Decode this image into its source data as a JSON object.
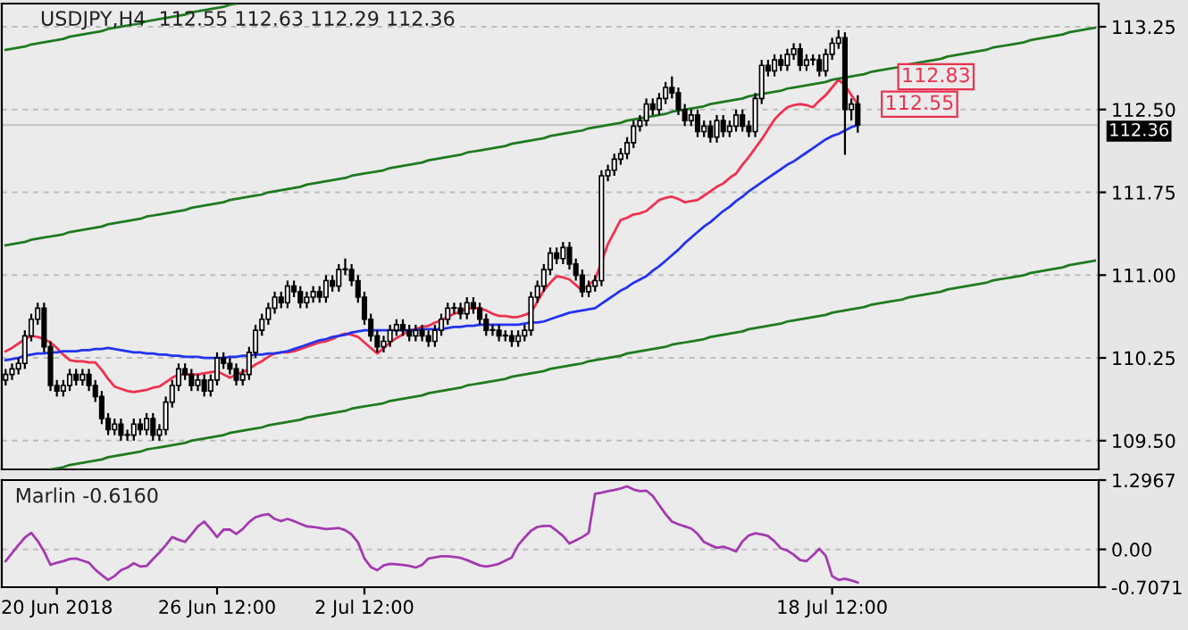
{
  "chart_data": [
    {
      "type": "candlestick",
      "title": "USDJPY,H4  112.55 112.63 112.29 112.36",
      "categories": [
        null,
        null,
        null,
        null,
        null,
        null,
        null,
        null,
        null,
        null,
        null,
        null,
        null,
        null,
        null,
        null,
        null,
        null,
        null,
        null,
        null,
        null,
        null,
        null,
        null,
        null,
        null,
        null,
        null,
        null,
        null,
        null,
        null,
        null,
        null,
        null,
        null,
        null,
        null,
        null,
        null,
        null,
        null,
        null,
        null,
        null,
        null,
        null,
        null,
        null,
        null,
        null,
        null,
        null,
        null,
        null,
        null,
        null,
        null,
        null,
        null,
        null,
        null,
        null,
        null,
        null,
        null,
        null,
        null,
        null,
        null,
        null,
        null,
        null,
        null,
        null,
        null,
        null,
        null,
        null,
        null,
        null,
        null,
        null,
        null,
        null,
        null,
        null,
        null,
        null,
        null,
        null,
        null,
        null,
        null,
        null,
        null,
        null,
        null,
        null,
        null,
        null,
        null,
        null,
        null,
        null,
        null,
        null,
        null,
        null,
        null,
        null,
        null,
        null,
        null,
        null,
        null,
        null,
        null,
        null,
        null,
        null,
        null,
        null,
        null,
        null,
        null,
        null,
        null,
        null,
        null,
        null,
        null,
        null,
        null,
        null,
        null,
        null,
        null,
        null,
        null,
        null,
        null,
        null,
        null,
        null,
        null,
        null,
        null,
        null,
        null,
        null,
        null,
        null,
        null,
        null,
        null,
        null,
        null,
        null,
        null,
        null,
        null,
        null,
        null,
        null,
        null,
        null,
        null,
        null,
        null
      ],
      "ohlc": [
        [
          110.05,
          110.15,
          110.0,
          110.1
        ],
        [
          110.1,
          110.2,
          110.05,
          110.15
        ],
        [
          110.15,
          110.25,
          110.1,
          110.2
        ],
        [
          110.2,
          110.5,
          110.15,
          110.45
        ],
        [
          110.45,
          110.65,
          110.4,
          110.6
        ],
        [
          110.6,
          110.75,
          110.55,
          110.7
        ],
        [
          110.7,
          110.75,
          110.3,
          110.35
        ],
        [
          110.35,
          110.4,
          109.95,
          110.0
        ],
        [
          110.0,
          110.05,
          109.9,
          109.95
        ],
        [
          109.95,
          110.05,
          109.9,
          110.0
        ],
        [
          110.0,
          110.15,
          109.95,
          110.1
        ],
        [
          110.1,
          110.15,
          110.0,
          110.05
        ],
        [
          110.05,
          110.15,
          110.0,
          110.1
        ],
        [
          110.1,
          110.15,
          109.95,
          110.0
        ],
        [
          110.0,
          110.05,
          109.85,
          109.9
        ],
        [
          109.9,
          109.95,
          109.65,
          109.7
        ],
        [
          109.7,
          109.75,
          109.55,
          109.6
        ],
        [
          109.6,
          109.7,
          109.55,
          109.65
        ],
        [
          109.65,
          109.7,
          109.5,
          109.55
        ],
        [
          109.55,
          109.6,
          109.5,
          109.55
        ],
        [
          109.55,
          109.7,
          109.5,
          109.65
        ],
        [
          109.65,
          109.7,
          109.55,
          109.6
        ],
        [
          109.6,
          109.75,
          109.55,
          109.7
        ],
        [
          109.7,
          109.75,
          109.5,
          109.55
        ],
        [
          109.55,
          109.65,
          109.5,
          109.6
        ],
        [
          109.6,
          109.9,
          109.55,
          109.85
        ],
        [
          109.85,
          110.05,
          109.8,
          110.0
        ],
        [
          110.0,
          110.2,
          109.95,
          110.15
        ],
        [
          110.15,
          110.2,
          110.05,
          110.1
        ],
        [
          110.1,
          110.15,
          109.95,
          110.0
        ],
        [
          110.0,
          110.1,
          109.95,
          110.05
        ],
        [
          110.05,
          110.1,
          109.9,
          109.95
        ],
        [
          109.95,
          110.1,
          109.9,
          110.05
        ],
        [
          110.05,
          110.3,
          110.0,
          110.25
        ],
        [
          110.25,
          110.3,
          110.15,
          110.2
        ],
        [
          110.2,
          110.25,
          110.1,
          110.15
        ],
        [
          110.15,
          110.2,
          110.0,
          110.05
        ],
        [
          110.05,
          110.15,
          110.0,
          110.1
        ],
        [
          110.1,
          110.35,
          110.05,
          110.3
        ],
        [
          110.3,
          110.55,
          110.25,
          110.5
        ],
        [
          110.5,
          110.65,
          110.45,
          110.6
        ],
        [
          110.6,
          110.75,
          110.55,
          110.7
        ],
        [
          110.7,
          110.85,
          110.65,
          110.8
        ],
        [
          110.8,
          110.85,
          110.7,
          110.75
        ],
        [
          110.75,
          110.95,
          110.7,
          110.9
        ],
        [
          110.9,
          110.95,
          110.8,
          110.85
        ],
        [
          110.85,
          110.9,
          110.7,
          110.75
        ],
        [
          110.75,
          110.85,
          110.7,
          110.8
        ],
        [
          110.8,
          110.9,
          110.75,
          110.85
        ],
        [
          110.85,
          110.9,
          110.75,
          110.8
        ],
        [
          110.8,
          111.0,
          110.75,
          110.95
        ],
        [
          110.95,
          111.0,
          110.85,
          110.9
        ],
        [
          110.9,
          111.1,
          110.85,
          111.05
        ],
        [
          111.05,
          111.15,
          111.0,
          111.05
        ],
        [
          111.05,
          111.1,
          110.9,
          110.95
        ],
        [
          110.95,
          111.0,
          110.75,
          110.8
        ],
        [
          110.8,
          110.85,
          110.55,
          110.6
        ],
        [
          110.6,
          110.65,
          110.4,
          110.45
        ],
        [
          110.45,
          110.5,
          110.3,
          110.35
        ],
        [
          110.35,
          110.45,
          110.3,
          110.4
        ],
        [
          110.4,
          110.55,
          110.35,
          110.5
        ],
        [
          110.5,
          110.6,
          110.45,
          110.55
        ],
        [
          110.55,
          110.6,
          110.45,
          110.5
        ],
        [
          110.5,
          110.55,
          110.4,
          110.45
        ],
        [
          110.45,
          110.55,
          110.4,
          110.5
        ],
        [
          110.5,
          110.55,
          110.4,
          110.45
        ],
        [
          110.45,
          110.5,
          110.35,
          110.4
        ],
        [
          110.4,
          110.55,
          110.35,
          110.5
        ],
        [
          110.5,
          110.65,
          110.45,
          110.6
        ],
        [
          110.6,
          110.75,
          110.55,
          110.7
        ],
        [
          110.7,
          110.75,
          110.65,
          110.7
        ],
        [
          110.7,
          110.75,
          110.6,
          110.65
        ],
        [
          110.65,
          110.8,
          110.6,
          110.75
        ],
        [
          110.75,
          110.8,
          110.65,
          110.7
        ],
        [
          110.7,
          110.75,
          110.55,
          110.6
        ],
        [
          110.6,
          110.65,
          110.45,
          110.5
        ],
        [
          110.5,
          110.55,
          110.45,
          110.5
        ],
        [
          110.5,
          110.55,
          110.4,
          110.45
        ],
        [
          110.45,
          110.5,
          110.4,
          110.45
        ],
        [
          110.45,
          110.5,
          110.35,
          110.4
        ],
        [
          110.4,
          110.5,
          110.35,
          110.45
        ],
        [
          110.45,
          110.55,
          110.4,
          110.5
        ],
        [
          110.5,
          110.85,
          110.45,
          110.8
        ],
        [
          110.8,
          110.95,
          110.75,
          110.9
        ],
        [
          110.9,
          111.1,
          110.85,
          111.05
        ],
        [
          111.05,
          111.25,
          111.0,
          111.2
        ],
        [
          111.2,
          111.25,
          111.1,
          111.15
        ],
        [
          111.15,
          111.3,
          111.1,
          111.25
        ],
        [
          111.25,
          111.3,
          111.05,
          111.1
        ],
        [
          111.1,
          111.15,
          110.95,
          111.0
        ],
        [
          111.0,
          111.05,
          110.8,
          110.85
        ],
        [
          110.85,
          110.95,
          110.8,
          110.9
        ],
        [
          110.9,
          111.0,
          110.85,
          110.95
        ],
        [
          110.95,
          111.95,
          110.9,
          111.9
        ],
        [
          111.9,
          112.0,
          111.85,
          111.95
        ],
        [
          111.95,
          112.1,
          111.9,
          112.05
        ],
        [
          112.05,
          112.15,
          112.0,
          112.1
        ],
        [
          112.1,
          112.25,
          112.05,
          112.2
        ],
        [
          112.2,
          112.4,
          112.15,
          112.35
        ],
        [
          112.35,
          112.45,
          112.3,
          112.4
        ],
        [
          112.4,
          112.6,
          112.35,
          112.55
        ],
        [
          112.55,
          112.6,
          112.45,
          112.5
        ],
        [
          112.5,
          112.65,
          112.45,
          112.6
        ],
        [
          112.6,
          112.75,
          112.55,
          112.7
        ],
        [
          112.7,
          112.8,
          112.6,
          112.65
        ],
        [
          112.65,
          112.7,
          112.45,
          112.5
        ],
        [
          112.5,
          112.55,
          112.35,
          112.4
        ],
        [
          112.4,
          112.5,
          112.35,
          112.45
        ],
        [
          112.45,
          112.5,
          112.25,
          112.3
        ],
        [
          112.3,
          112.4,
          112.25,
          112.35
        ],
        [
          112.35,
          112.4,
          112.2,
          112.25
        ],
        [
          112.25,
          112.45,
          112.2,
          112.4
        ],
        [
          112.4,
          112.45,
          112.25,
          112.3
        ],
        [
          112.3,
          112.4,
          112.25,
          112.35
        ],
        [
          112.35,
          112.5,
          112.3,
          112.45
        ],
        [
          112.45,
          112.5,
          112.3,
          112.35
        ],
        [
          112.35,
          112.4,
          112.25,
          112.3
        ],
        [
          112.3,
          112.65,
          112.25,
          112.6
        ],
        [
          112.6,
          112.95,
          112.55,
          112.9
        ],
        [
          112.9,
          112.95,
          112.8,
          112.85
        ],
        [
          112.85,
          113.0,
          112.8,
          112.95
        ],
        [
          112.95,
          113.0,
          112.85,
          112.9
        ],
        [
          112.9,
          113.05,
          112.85,
          113.0
        ],
        [
          113.0,
          113.1,
          112.95,
          113.05
        ],
        [
          113.05,
          113.1,
          112.85,
          112.9
        ],
        [
          112.9,
          113.0,
          112.85,
          112.95
        ],
        [
          112.95,
          113.0,
          112.9,
          112.95
        ],
        [
          112.95,
          113.0,
          112.8,
          112.85
        ],
        [
          112.85,
          113.05,
          112.8,
          113.0
        ],
        [
          113.0,
          113.15,
          112.95,
          113.1
        ],
        [
          113.1,
          113.22,
          113.05,
          113.15
        ],
        [
          113.15,
          113.2,
          112.09,
          112.5
        ],
        [
          112.5,
          112.6,
          112.4,
          112.55
        ],
        [
          112.55,
          112.63,
          112.29,
          112.36
        ],
        null,
        null,
        null,
        null,
        null,
        null,
        null,
        null,
        null,
        null,
        null,
        null,
        null,
        null,
        null,
        null,
        null,
        null,
        null,
        null,
        null,
        null,
        null,
        null,
        null,
        null,
        null,
        null,
        null,
        null,
        null,
        null,
        null,
        null,
        null,
        null,
        null
      ],
      "series": [
        {
          "type": "line",
          "color": "#f0304e",
          "values": [
            110.31,
            110.34,
            110.38,
            110.42,
            110.45,
            110.44,
            110.42,
            110.39,
            110.34,
            110.28,
            110.23,
            110.22,
            110.22,
            110.21,
            110.21,
            110.14,
            110.06,
            109.99,
            109.97,
            109.95,
            109.94,
            109.95,
            109.96,
            109.98,
            109.99,
            110.03,
            110.07,
            110.1,
            110.1,
            110.1,
            110.1,
            110.11,
            110.12,
            110.13,
            110.1,
            110.07,
            110.1,
            110.12,
            110.15,
            110.19,
            110.22,
            110.26,
            110.29,
            110.3,
            110.3,
            110.31,
            110.33,
            110.35,
            110.37,
            110.39,
            110.4,
            110.42,
            110.45,
            110.47,
            110.46,
            110.44,
            110.39,
            110.34,
            110.29,
            110.34,
            110.39,
            110.43,
            110.46,
            110.5,
            110.51,
            110.53,
            110.54,
            110.57,
            110.59,
            110.62,
            110.65,
            110.67,
            110.7,
            110.7,
            110.7,
            110.68,
            110.65,
            110.63,
            110.63,
            110.62,
            110.62,
            110.64,
            110.66,
            110.76,
            110.86,
            110.93,
            110.99,
            110.98,
            110.96,
            110.91,
            110.86,
            110.91,
            110.96,
            111.12,
            111.28,
            111.39,
            111.5,
            111.52,
            111.55,
            111.56,
            111.58,
            111.63,
            111.68,
            111.7,
            111.71,
            111.69,
            111.66,
            111.67,
            111.68,
            111.72,
            111.76,
            111.8,
            111.83,
            111.88,
            111.92,
            112.0,
            112.07,
            112.15,
            112.23,
            112.32,
            112.41,
            112.47,
            112.52,
            112.54,
            112.55,
            112.54,
            112.52,
            112.58,
            112.63,
            112.7,
            112.77,
            112.72,
            112.63,
            112.55,
            null,
            null,
            null,
            null,
            null,
            null,
            null,
            null,
            null,
            null,
            null,
            null,
            null,
            null,
            null,
            null,
            null,
            null,
            null,
            null,
            null,
            null,
            null,
            null,
            null,
            null,
            null,
            null,
            null,
            null,
            null,
            null,
            null,
            null,
            null,
            null,
            null
          ]
        },
        {
          "type": "line",
          "color": "#2233ee",
          "values": [
            110.23,
            110.24,
            110.25,
            110.27,
            110.28,
            110.29,
            110.29,
            110.3,
            110.3,
            110.31,
            110.31,
            110.31,
            110.32,
            110.32,
            110.33,
            110.33,
            110.34,
            110.33,
            110.32,
            110.31,
            110.3,
            110.3,
            110.29,
            110.29,
            110.28,
            110.28,
            110.27,
            110.27,
            110.26,
            110.26,
            110.26,
            110.25,
            110.25,
            110.25,
            110.25,
            110.26,
            110.26,
            110.27,
            110.27,
            110.28,
            110.28,
            110.29,
            110.29,
            110.3,
            110.31,
            110.33,
            110.35,
            110.37,
            110.39,
            110.41,
            110.42,
            110.44,
            110.45,
            110.46,
            110.48,
            110.49,
            110.5,
            110.5,
            110.5,
            110.5,
            110.5,
            110.5,
            110.5,
            110.5,
            110.5,
            110.51,
            110.51,
            110.51,
            110.51,
            110.52,
            110.53,
            110.53,
            110.54,
            110.54,
            110.55,
            110.55,
            110.55,
            110.55,
            110.55,
            110.55,
            110.55,
            110.56,
            110.57,
            110.57,
            110.58,
            110.6,
            110.62,
            110.64,
            110.66,
            110.67,
            110.68,
            110.69,
            110.7,
            110.74,
            110.78,
            110.82,
            110.86,
            110.89,
            110.93,
            110.96,
            110.99,
            111.04,
            111.08,
            111.13,
            111.18,
            111.23,
            111.29,
            111.34,
            111.39,
            111.44,
            111.48,
            111.53,
            111.58,
            111.62,
            111.67,
            111.71,
            111.76,
            111.8,
            111.84,
            111.88,
            111.92,
            111.96,
            112.0,
            112.03,
            112.07,
            112.11,
            112.15,
            112.19,
            112.23,
            112.26,
            112.28,
            112.31,
            112.34,
            112.36,
            null,
            null,
            null,
            null,
            null,
            null,
            null,
            null,
            null,
            null,
            null,
            null,
            null,
            null,
            null,
            null,
            null,
            null,
            null,
            null,
            null,
            null,
            null,
            null,
            null,
            null,
            null,
            null,
            null,
            null,
            null,
            null,
            null,
            null,
            null,
            null,
            null
          ]
        },
        {
          "type": "line",
          "color": "#1f7a1f",
          "values": [
            113.04,
            113.05,
            113.06,
            113.07,
            113.09,
            113.1,
            113.11,
            113.12,
            113.13,
            113.14,
            113.16,
            113.17,
            113.18,
            113.19,
            113.2,
            113.21,
            113.23,
            113.24,
            113.25,
            113.26,
            113.27,
            113.28,
            113.3,
            113.31,
            113.32,
            113.33,
            113.34,
            113.35,
            113.36,
            113.38,
            113.39,
            113.4,
            113.41,
            113.42,
            113.43,
            113.45,
            113.46,
            null,
            null,
            null,
            null,
            null,
            null,
            null,
            null,
            null,
            null,
            null,
            null,
            null,
            null,
            null,
            null,
            null,
            null,
            null,
            null,
            null,
            null,
            null,
            null,
            null,
            null,
            null,
            null,
            null,
            null,
            null,
            null,
            null,
            null,
            null,
            null,
            null,
            null,
            null,
            null,
            null,
            null,
            null,
            null,
            null,
            null,
            null,
            null,
            null,
            null,
            null,
            null,
            null,
            null,
            null,
            null,
            null,
            null,
            null,
            null,
            null,
            null,
            null,
            null,
            null,
            null,
            null,
            null,
            null,
            null,
            null,
            null,
            null,
            null,
            null,
            null,
            null,
            null,
            null,
            null,
            null,
            null,
            null,
            null,
            null,
            null,
            null,
            null,
            null,
            null,
            null,
            null,
            null,
            null,
            null,
            null,
            null,
            null,
            null,
            null,
            null,
            null,
            null,
            null,
            null,
            null,
            null,
            null,
            null,
            null,
            null,
            null,
            null,
            null,
            null,
            null,
            null,
            null,
            null,
            null,
            null,
            null,
            null,
            null,
            null,
            null,
            null,
            null,
            null,
            null,
            null,
            null,
            null,
            null
          ]
        },
        {
          "type": "line",
          "color": "#1f7a1f",
          "values": [
            111.27,
            111.28,
            111.29,
            111.3,
            111.32,
            111.33,
            111.34,
            111.35,
            111.36,
            111.37,
            111.39,
            111.4,
            111.41,
            111.42,
            111.43,
            111.44,
            111.46,
            111.47,
            111.48,
            111.49,
            111.5,
            111.51,
            111.53,
            111.54,
            111.55,
            111.56,
            111.57,
            111.58,
            111.59,
            111.61,
            111.62,
            111.63,
            111.64,
            111.65,
            111.66,
            111.68,
            111.69,
            111.7,
            111.71,
            111.72,
            111.73,
            111.75,
            111.76,
            111.77,
            111.78,
            111.79,
            111.8,
            111.82,
            111.83,
            111.84,
            111.85,
            111.86,
            111.87,
            111.88,
            111.9,
            111.91,
            111.92,
            111.93,
            111.94,
            111.95,
            111.97,
            111.98,
            111.99,
            112.0,
            112.01,
            112.02,
            112.04,
            112.05,
            112.06,
            112.07,
            112.08,
            112.09,
            112.11,
            112.12,
            112.13,
            112.14,
            112.15,
            112.16,
            112.17,
            112.19,
            112.2,
            112.21,
            112.22,
            112.23,
            112.24,
            112.26,
            112.27,
            112.28,
            112.29,
            112.3,
            112.31,
            112.33,
            112.34,
            112.35,
            112.36,
            112.37,
            112.38,
            112.4,
            112.41,
            112.42,
            112.43,
            112.44,
            112.45,
            112.46,
            112.48,
            112.49,
            112.5,
            112.51,
            112.52,
            112.53,
            112.55,
            112.56,
            112.57,
            112.58,
            112.59,
            112.6,
            112.62,
            112.63,
            112.64,
            112.65,
            112.66,
            112.67,
            112.69,
            112.7,
            112.71,
            112.72,
            112.73,
            112.74,
            112.75,
            112.77,
            112.78,
            112.79,
            112.8,
            112.81,
            112.82,
            112.84,
            112.85,
            112.86,
            112.87,
            112.88,
            112.89,
            112.91,
            112.92,
            112.93,
            112.94,
            112.95,
            112.96,
            112.98,
            112.99,
            113.0,
            113.01,
            113.02,
            113.03,
            113.04,
            113.06,
            113.07,
            113.08,
            113.09,
            113.1,
            113.11,
            113.13,
            113.14,
            113.15,
            113.16,
            113.17,
            113.18,
            113.2,
            113.21,
            113.22,
            113.23,
            113.24
          ]
        },
        {
          "type": "line",
          "color": "#1f7a1f",
          "values": [
            null,
            null,
            null,
            null,
            null,
            null,
            null,
            109.24,
            109.25,
            109.26,
            109.28,
            109.29,
            109.3,
            109.31,
            109.32,
            109.33,
            109.35,
            109.36,
            109.37,
            109.38,
            109.39,
            109.4,
            109.42,
            109.43,
            109.44,
            109.45,
            109.46,
            109.47,
            109.48,
            109.5,
            109.51,
            109.52,
            109.53,
            109.54,
            109.55,
            109.57,
            109.58,
            109.59,
            109.6,
            109.61,
            109.62,
            109.64,
            109.65,
            109.66,
            109.67,
            109.68,
            109.69,
            109.71,
            109.72,
            109.73,
            109.74,
            109.75,
            109.76,
            109.77,
            109.79,
            109.8,
            109.81,
            109.82,
            109.83,
            109.84,
            109.86,
            109.87,
            109.88,
            109.89,
            109.9,
            109.91,
            109.93,
            109.94,
            109.95,
            109.96,
            109.97,
            109.98,
            110.0,
            110.01,
            110.02,
            110.03,
            110.04,
            110.05,
            110.06,
            110.08,
            110.09,
            110.1,
            110.11,
            110.12,
            110.13,
            110.15,
            110.16,
            110.17,
            110.18,
            110.19,
            110.2,
            110.22,
            110.23,
            110.24,
            110.25,
            110.26,
            110.27,
            110.29,
            110.3,
            110.31,
            110.32,
            110.33,
            110.34,
            110.35,
            110.37,
            110.38,
            110.39,
            110.4,
            110.41,
            110.42,
            110.44,
            110.45,
            110.46,
            110.47,
            110.48,
            110.49,
            110.51,
            110.52,
            110.53,
            110.54,
            110.55,
            110.56,
            110.58,
            110.59,
            110.6,
            110.61,
            110.62,
            110.63,
            110.64,
            110.66,
            110.67,
            110.68,
            110.69,
            110.7,
            110.71,
            110.73,
            110.74,
            110.75,
            110.76,
            110.77,
            110.78,
            110.8,
            110.81,
            110.82,
            110.83,
            110.84,
            110.85,
            110.87,
            110.88,
            110.89,
            110.9,
            110.91,
            110.92,
            110.93,
            110.95,
            110.96,
            110.97,
            110.98,
            110.99,
            111.0,
            111.02,
            111.03,
            111.04,
            111.05,
            111.06,
            111.07,
            111.09,
            111.1,
            111.11,
            111.12,
            111.13
          ]
        }
      ],
      "ref_lines": [
        {
          "axis": "y",
          "value": 112.36,
          "label": "112.36",
          "color": "#c8c8c8"
        }
      ],
      "annotations": [
        "112.83",
        "112.55"
      ],
      "ylim": [
        109.24,
        113.46
      ],
      "yticks": [
        113.25,
        {
          "value": 112.5,
          "label": "112.50"
        },
        111.75,
        {
          "value": 111.0,
          "label": "111.00"
        },
        110.25,
        {
          "value": 109.5,
          "label": "109.50"
        }
      ],
      "grid": "y"
    },
    {
      "type": "line",
      "title": "Marlin -0.6160",
      "categories": [
        null,
        null,
        null,
        null,
        null,
        null,
        null,
        null,
        "20 Jun 2018",
        null,
        null,
        null,
        null,
        null,
        null,
        null,
        null,
        null,
        null,
        null,
        null,
        null,
        null,
        null,
        null,
        null,
        null,
        null,
        null,
        null,
        null,
        null,
        null,
        "26 Jun 12:00",
        null,
        null,
        null,
        null,
        null,
        null,
        null,
        null,
        null,
        null,
        null,
        null,
        null,
        null,
        null,
        null,
        null,
        null,
        null,
        null,
        null,
        null,
        "2 Jul 12:00",
        null,
        null,
        null,
        null,
        null,
        null,
        null,
        null,
        null,
        null,
        null,
        null,
        null,
        null,
        null,
        null,
        null,
        null,
        null,
        null,
        null,
        null,
        null,
        null,
        null,
        null,
        null,
        null,
        null,
        null,
        null,
        null,
        null,
        null,
        null,
        null,
        null,
        null,
        null,
        null,
        null,
        null,
        null,
        null,
        null,
        null,
        null,
        null,
        null,
        null,
        null,
        null,
        null,
        null,
        null,
        null,
        null,
        null,
        null,
        null,
        null,
        null,
        null,
        null,
        null,
        null,
        null,
        null,
        null,
        null,
        null,
        null,
        "18 Jul 12:00",
        null,
        null,
        null,
        null,
        null,
        null,
        null,
        null,
        null,
        null,
        null,
        null,
        null,
        null,
        null,
        null,
        null,
        null,
        null,
        null,
        null,
        null,
        null,
        null,
        null,
        null,
        null,
        null,
        null,
        null,
        null,
        null,
        null,
        null,
        null,
        null,
        null,
        null,
        null,
        null,
        null
      ],
      "series": [
        {
          "color": "#a33ab0",
          "values": [
            -0.22,
            -0.07,
            0.08,
            0.22,
            0.31,
            0.16,
            -0.04,
            -0.29,
            -0.25,
            -0.22,
            -0.18,
            -0.17,
            -0.21,
            -0.25,
            -0.38,
            -0.48,
            -0.57,
            -0.5,
            -0.39,
            -0.34,
            -0.26,
            -0.32,
            -0.31,
            -0.18,
            -0.06,
            0.08,
            0.23,
            0.18,
            0.14,
            0.28,
            0.43,
            0.52,
            0.38,
            0.23,
            0.37,
            0.37,
            0.29,
            0.38,
            0.51,
            0.6,
            0.64,
            0.66,
            0.57,
            0.53,
            0.57,
            0.53,
            0.48,
            0.43,
            0.42,
            0.4,
            0.38,
            0.39,
            0.4,
            0.36,
            0.28,
            0.13,
            -0.17,
            -0.33,
            -0.39,
            -0.3,
            -0.27,
            -0.28,
            -0.29,
            -0.31,
            -0.34,
            -0.29,
            -0.17,
            -0.15,
            -0.13,
            -0.13,
            -0.14,
            -0.16,
            -0.2,
            -0.25,
            -0.3,
            -0.32,
            -0.3,
            -0.27,
            -0.21,
            -0.15,
            0.08,
            0.22,
            0.35,
            0.42,
            0.44,
            0.44,
            0.35,
            0.25,
            0.11,
            0.17,
            0.23,
            0.31,
            1.04,
            1.06,
            1.09,
            1.11,
            1.14,
            1.18,
            1.12,
            1.09,
            1.1,
            1.0,
            0.83,
            0.66,
            0.52,
            0.47,
            0.43,
            0.39,
            0.29,
            0.14,
            0.08,
            0.03,
            0.05,
            0.01,
            -0.04,
            0.15,
            0.26,
            0.3,
            0.28,
            0.25,
            0.15,
            0.02,
            -0.02,
            -0.1,
            -0.2,
            -0.22,
            -0.11,
            0.01,
            -0.12,
            -0.5,
            -0.57,
            -0.55,
            -0.58,
            -0.62,
            null,
            null,
            null,
            null,
            null,
            null,
            null,
            null,
            null,
            null,
            null,
            null,
            null,
            null,
            null,
            null,
            null,
            null,
            null,
            null,
            null,
            null,
            null,
            null,
            null,
            null,
            null,
            null,
            null,
            null,
            null,
            null,
            null,
            null,
            null,
            null,
            null
          ]
        }
      ],
      "ylim": [
        -0.7071,
        1.2967
      ],
      "yticks": [
        1.2967,
        {
          "value": 0,
          "label": "0.00"
        },
        -0.7071
      ],
      "grid": "y"
    }
  ]
}
